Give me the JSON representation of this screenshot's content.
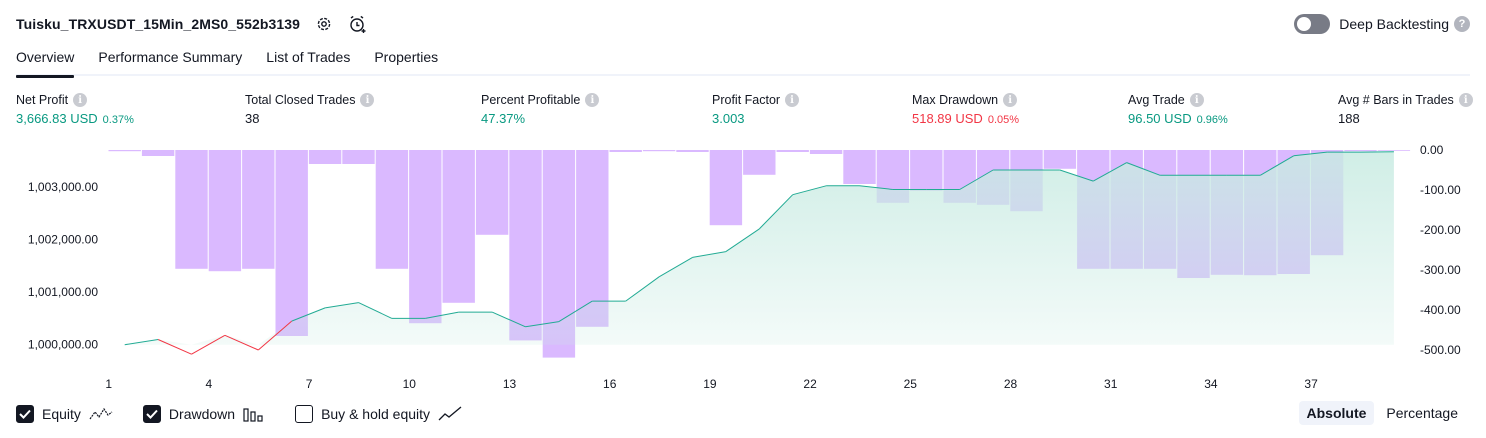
{
  "header": {
    "strategy_title": "Tuisku_TRXUSDT_15Min_2MS0_552b3139",
    "settings_icon": "gear-icon",
    "alert_icon": "alarm-clock-add-icon"
  },
  "deep_backtesting": {
    "label": "Deep Backtesting",
    "enabled": false,
    "help": "?"
  },
  "tabs": [
    {
      "label": "Overview",
      "active": true
    },
    {
      "label": "Performance Summary",
      "active": false
    },
    {
      "label": "List of Trades",
      "active": false
    },
    {
      "label": "Properties",
      "active": false
    }
  ],
  "metrics": [
    {
      "label": "Net Profit",
      "value": "3,666.83 USD",
      "pct": "0.37%",
      "tone": "pos"
    },
    {
      "label": "Total Closed Trades",
      "value": "38",
      "pct": "",
      "tone": "neu"
    },
    {
      "label": "Percent Profitable",
      "value": "47.37%",
      "pct": "",
      "tone": "pos"
    },
    {
      "label": "Profit Factor",
      "value": "3.003",
      "pct": "",
      "tone": "pos"
    },
    {
      "label": "Max Drawdown",
      "value": "518.89 USD",
      "pct": "0.05%",
      "tone": "neg"
    },
    {
      "label": "Avg Trade",
      "value": "96.50 USD",
      "pct": "0.96%",
      "tone": "pos"
    },
    {
      "label": "Avg # Bars in Trades",
      "value": "188",
      "pct": "",
      "tone": "neu"
    }
  ],
  "info_glyph": "i",
  "colors": {
    "equity_line": "#22ab94",
    "equity_loss": "#f23645",
    "drawdown_bar": "#d1a8ff",
    "equity_fill": "#c8ebe2",
    "positive": "#089981",
    "negative": "#f23645"
  },
  "chart_data": {
    "type": "area",
    "x_ticks": [
      "1",
      "4",
      "7",
      "10",
      "13",
      "16",
      "19",
      "22",
      "25",
      "28",
      "31",
      "34",
      "37"
    ],
    "equity_axis": {
      "ticks": [
        "1,000,000.00",
        "1,001,000.00",
        "1,002,000.00",
        "1,003,000.00"
      ],
      "tick_values": [
        1000000,
        1001000,
        1002000,
        1003000
      ],
      "range": [
        999900,
        1003700
      ]
    },
    "drawdown_axis": {
      "ticks": [
        "0.00",
        "-100.00",
        "-200.00",
        "-300.00",
        "-400.00",
        "-500.00"
      ],
      "tick_values": [
        0,
        -100,
        -200,
        -300,
        -400,
        -500
      ],
      "range": [
        -500,
        0
      ]
    },
    "series": [
      {
        "name": "Equity",
        "values": [
          1000000,
          1000100,
          999820,
          1000180,
          999900,
          1000450,
          1000700,
          1000800,
          1000500,
          1000500,
          1000620,
          1000620,
          1000340,
          1000440,
          1000830,
          1000830,
          1001290,
          1001660,
          1001770,
          1002200,
          1002850,
          1003020,
          1003020,
          1002950,
          1002950,
          1002950,
          1003320,
          1003320,
          1003320,
          1003110,
          1003460,
          1003220,
          1003220,
          1003220,
          1003220,
          1003590,
          1003660,
          1003660,
          1003667
        ]
      },
      {
        "name": "Drawdown",
        "values": [
          -3,
          -15,
          -297,
          -303,
          -297,
          -465,
          -35,
          -35,
          -297,
          -433,
          -382,
          -212,
          -476,
          -519,
          -442,
          -5,
          -3,
          -5,
          -188,
          -62,
          -5,
          -10,
          -85,
          -132,
          -102,
          -132,
          -137,
          -153,
          -47,
          -297,
          -297,
          -297,
          -320,
          -312,
          -313,
          -310,
          -263,
          -3,
          -2
        ]
      }
    ]
  },
  "legend": [
    {
      "label": "Equity",
      "checked": true
    },
    {
      "label": "Drawdown",
      "checked": true
    },
    {
      "label": "Buy & hold equity",
      "checked": false
    }
  ],
  "mode": {
    "absolute": "Absolute",
    "percentage": "Percentage",
    "selected": "Absolute"
  }
}
